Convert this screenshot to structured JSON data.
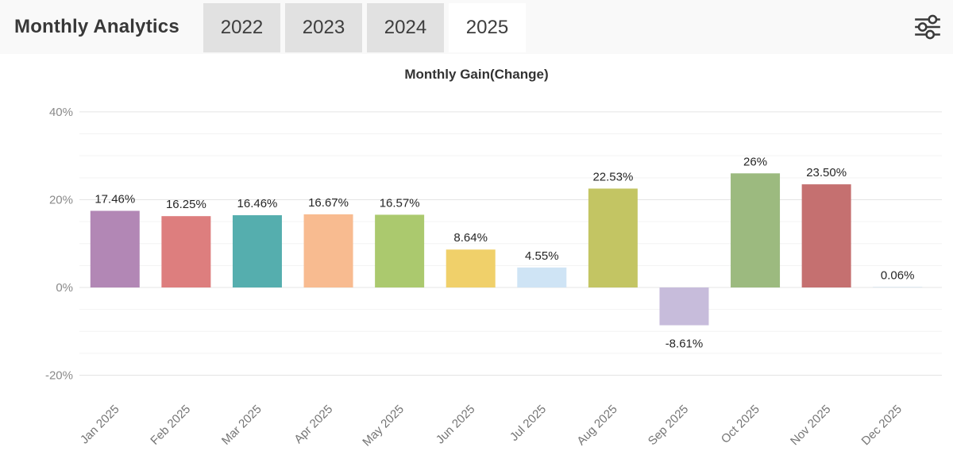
{
  "header": {
    "title": "Monthly Analytics",
    "tabs": [
      {
        "label": "2022",
        "selected": false
      },
      {
        "label": "2023",
        "selected": false
      },
      {
        "label": "2024",
        "selected": false
      },
      {
        "label": "2025",
        "selected": true
      }
    ],
    "settings_icon": "sliders-icon"
  },
  "colors": {
    "header_bg": "#f9f9f9",
    "tab_bg": "#e1e1e1",
    "tab_selected_bg": "#ffffff",
    "grid_major": "#e4e4e4",
    "grid_minor": "#f3f3f3",
    "icon_stroke": "#3a3a3a"
  },
  "chart_data": {
    "type": "bar",
    "title": "Monthly Gain(Change)",
    "xlabel": "",
    "ylabel": "",
    "grid": "on",
    "legend": "none",
    "ylim": [
      -20,
      40
    ],
    "ytick_major_step": 20,
    "ytick_minor_step": 5,
    "yticks": [
      {
        "value": 40,
        "label": "40%"
      },
      {
        "value": 20,
        "label": "20%"
      },
      {
        "value": 0,
        "label": "0%"
      },
      {
        "value": -20,
        "label": "-20%"
      }
    ],
    "categories": [
      "Jan 2025",
      "Feb 2025",
      "Mar 2025",
      "Apr 2025",
      "May 2025",
      "Jun 2025",
      "Jul 2025",
      "Aug 2025",
      "Sep 2025",
      "Oct 2025",
      "Nov 2025",
      "Dec 2025"
    ],
    "values": [
      17.46,
      16.25,
      16.46,
      16.67,
      16.57,
      8.64,
      4.55,
      22.53,
      -8.61,
      26,
      23.5,
      0.06
    ],
    "value_labels": [
      "17.46%",
      "16.25%",
      "16.46%",
      "16.67%",
      "16.57%",
      "8.64%",
      "4.55%",
      "22.53%",
      "-8.61%",
      "26%",
      "23.50%",
      "0.06%"
    ],
    "bar_colors": [
      "#b287b5",
      "#dd7e7e",
      "#55aeae",
      "#f8bb90",
      "#abc96e",
      "#f0d06a",
      "#cfe4f5",
      "#c3c563",
      "#c7bcdb",
      "#9cba7f",
      "#c57070",
      "#a8c8e0"
    ]
  }
}
